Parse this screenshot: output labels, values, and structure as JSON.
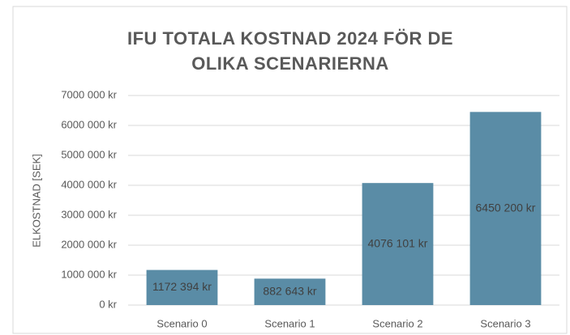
{
  "chart_data": {
    "type": "bar",
    "title": "IFU TOTALA KOSTNAD 2024 FÖR DE OLIKA SCENARIERNA",
    "y_label": "ELKOSTNAD [SEK]",
    "categories": [
      "Scenario 0",
      "Scenario 1",
      "Scenario 2",
      "Scenario 3"
    ],
    "values": [
      1172394,
      882643,
      4076101,
      6450200
    ],
    "value_labels": [
      "1172 394 kr",
      "882 643 kr",
      "4076 101 kr",
      "6450 200 kr"
    ],
    "color": "#5a8ca6",
    "ylim": [
      0,
      7000000
    ],
    "yticks": [
      {
        "value": 0,
        "label": "0 kr"
      },
      {
        "value": 1000000,
        "label": "1000 000 kr"
      },
      {
        "value": 2000000,
        "label": "2000 000 kr"
      },
      {
        "value": 3000000,
        "label": "3000 000 kr"
      },
      {
        "value": 4000000,
        "label": "4000 000 kr"
      },
      {
        "value": 5000000,
        "label": "5000 000 kr"
      },
      {
        "value": 6000000,
        "label": "6000 000 kr"
      },
      {
        "value": 7000000,
        "label": "7000 000 kr"
      }
    ],
    "grid": true
  }
}
